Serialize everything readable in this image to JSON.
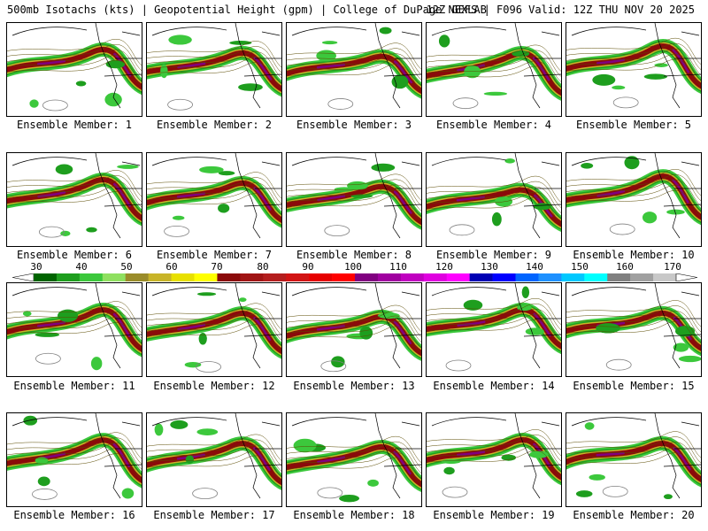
{
  "header": {
    "left": "500mb Isotachs (kts) | Geopotential Height (gpm) | College of DuPage NEXLAB",
    "right": "12Z GEFS | F096 Valid: 12Z THU NOV 20 2025"
  },
  "members": [
    {
      "label": "Ensemble Member: 1"
    },
    {
      "label": "Ensemble Member: 2"
    },
    {
      "label": "Ensemble Member: 3"
    },
    {
      "label": "Ensemble Member: 4"
    },
    {
      "label": "Ensemble Member: 5"
    },
    {
      "label": "Ensemble Member: 6"
    },
    {
      "label": "Ensemble Member: 7"
    },
    {
      "label": "Ensemble Member: 8"
    },
    {
      "label": "Ensemble Member: 9"
    },
    {
      "label": "Ensemble Member: 10"
    },
    {
      "label": "Ensemble Member: 11"
    },
    {
      "label": "Ensemble Member: 12"
    },
    {
      "label": "Ensemble Member: 13"
    },
    {
      "label": "Ensemble Member: 14"
    },
    {
      "label": "Ensemble Member: 15"
    },
    {
      "label": "Ensemble Member: 16"
    },
    {
      "label": "Ensemble Member: 17"
    },
    {
      "label": "Ensemble Member: 18"
    },
    {
      "label": "Ensemble Member: 19"
    },
    {
      "label": "Ensemble Member: 20"
    }
  ],
  "colorbar": {
    "labels": [
      "30",
      "40",
      "50",
      "60",
      "70",
      "80",
      "90",
      "100",
      "110",
      "120",
      "130",
      "140",
      "150",
      "160",
      "170"
    ],
    "colors": [
      "#006400",
      "#1e9e1e",
      "#3cc83c",
      "#8fe060",
      "#9a8c2a",
      "#c8b428",
      "#e8e000",
      "#ffff00",
      "#8b0a0a",
      "#a01414",
      "#b41e1e",
      "#d21414",
      "#e60000",
      "#ff0000",
      "#800080",
      "#a000a0",
      "#c000c0",
      "#e000e0",
      "#ff00ff",
      "#0000b4",
      "#0000ff",
      "#0064ff",
      "#1e90ff",
      "#00c8ff",
      "#00ffff",
      "#808080",
      "#a0a0a0",
      "#c8c8c8"
    ]
  }
}
